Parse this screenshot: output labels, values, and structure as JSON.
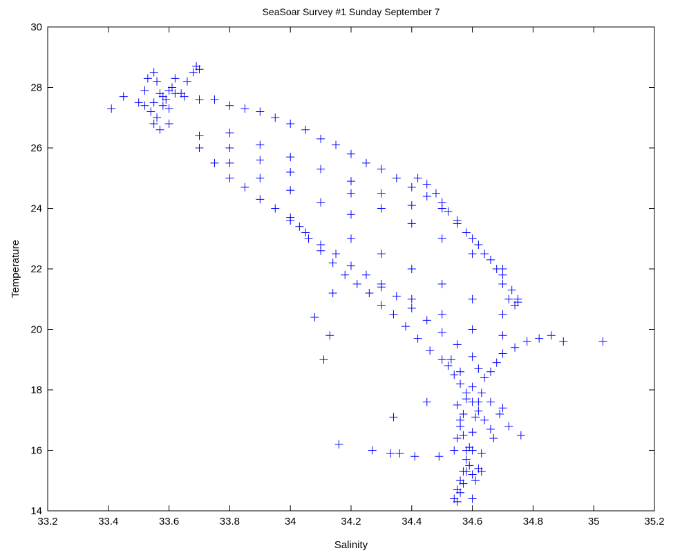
{
  "chart_data": {
    "type": "scatter",
    "title": "SeaSoar Survey #1 Sunday September 7",
    "xlabel": "Salinity",
    "ylabel": "Temperature",
    "xlim": [
      33.2,
      35.2
    ],
    "ylim": [
      14,
      30
    ],
    "xticks": [
      "33.2",
      "33.4",
      "33.6",
      "33.8",
      "34",
      "34.2",
      "34.4",
      "34.6",
      "34.8",
      "35",
      "35.2"
    ],
    "yticks": [
      "14",
      "16",
      "18",
      "20",
      "22",
      "24",
      "26",
      "28",
      "30"
    ],
    "grid": false,
    "marker": "+",
    "color": "#0000ff",
    "series": [
      {
        "x": [
          33.41,
          33.45,
          33.5,
          33.52,
          33.53,
          33.55,
          33.56,
          33.57,
          33.58,
          33.6,
          33.62,
          33.54,
          33.56,
          33.59,
          33.61,
          33.55,
          33.57,
          33.6,
          33.64,
          33.66,
          33.68,
          33.69,
          33.7,
          33.52,
          33.55,
          33.58,
          33.62,
          33.65,
          33.7,
          33.75,
          33.8,
          33.85,
          33.9,
          33.95,
          34.0,
          34.05,
          34.1,
          34.15,
          34.2,
          34.25,
          34.3,
          34.35,
          34.4,
          34.45,
          34.5,
          34.55,
          34.6,
          34.64,
          34.68,
          34.7,
          34.72,
          34.74,
          34.75,
          34.73,
          34.7,
          34.66,
          34.62,
          34.58,
          34.55,
          34.52,
          34.5,
          34.48,
          34.45,
          34.42,
          33.7,
          33.75,
          33.8,
          33.85,
          33.9,
          33.95,
          34.0,
          34.05,
          34.1,
          34.15,
          34.2,
          34.25,
          34.3,
          34.35,
          34.4,
          34.45,
          34.5,
          34.55,
          34.6,
          34.62,
          34.64,
          34.66,
          34.68,
          34.7,
          34.74,
          34.78,
          34.82,
          34.86,
          34.9,
          35.03,
          34.0,
          34.03,
          34.06,
          34.1,
          34.14,
          34.18,
          34.22,
          34.26,
          34.3,
          34.34,
          34.38,
          34.42,
          34.46,
          34.5,
          34.52,
          34.54,
          34.56,
          34.58,
          34.6,
          34.62,
          34.64,
          34.66,
          34.55,
          34.56,
          34.57,
          34.58,
          34.59,
          34.6,
          34.61,
          34.62,
          34.63,
          34.54,
          34.55,
          34.56,
          34.57,
          34.58,
          34.59,
          34.6,
          34.61,
          34.62,
          34.55,
          34.56,
          34.57,
          34.58,
          34.54,
          34.55,
          34.56,
          34.57,
          34.58,
          34.6,
          34.63,
          34.66,
          34.69,
          34.72,
          34.76,
          34.2,
          34.3,
          34.4,
          34.5,
          34.6,
          34.7,
          34.2,
          34.3,
          34.4,
          34.5,
          34.6,
          34.7,
          34.3,
          34.4,
          34.5,
          34.6,
          34.7,
          33.7,
          33.8,
          33.9,
          34.0,
          34.1,
          34.2,
          33.8,
          33.9,
          34.0,
          34.1,
          34.2,
          34.3,
          34.4,
          33.6,
          33.7,
          33.8,
          33.9,
          34.0,
          34.08,
          34.13,
          34.11,
          34.14,
          34.16,
          34.27,
          34.33,
          34.34,
          34.36,
          34.41,
          34.49,
          34.53,
          34.45,
          34.56,
          34.6,
          34.63,
          34.67,
          34.7,
          34.75,
          34.6
        ],
        "y": [
          27.3,
          27.7,
          27.5,
          27.9,
          28.3,
          28.5,
          28.2,
          27.8,
          27.4,
          27.9,
          28.3,
          27.2,
          27.0,
          27.6,
          28.0,
          26.8,
          26.6,
          27.3,
          27.8,
          28.2,
          28.5,
          28.7,
          28.6,
          27.4,
          27.5,
          27.7,
          27.8,
          27.7,
          27.6,
          27.6,
          27.4,
          27.3,
          27.2,
          27.0,
          26.8,
          26.6,
          26.3,
          26.1,
          25.8,
          25.5,
          25.3,
          25.0,
          24.7,
          24.4,
          24.0,
          23.5,
          23.0,
          22.5,
          22.0,
          21.5,
          21.0,
          20.8,
          20.9,
          21.3,
          21.8,
          22.3,
          22.8,
          23.2,
          23.6,
          23.9,
          24.2,
          24.5,
          24.8,
          25.0,
          26.0,
          25.5,
          25.0,
          24.7,
          24.3,
          24.0,
          23.6,
          23.2,
          22.8,
          22.5,
          22.1,
          21.8,
          21.4,
          21.1,
          20.7,
          20.3,
          19.9,
          19.5,
          19.1,
          18.7,
          18.4,
          18.6,
          18.9,
          19.2,
          19.4,
          19.6,
          19.7,
          19.8,
          19.6,
          19.6,
          23.7,
          23.4,
          23.0,
          22.6,
          22.2,
          21.8,
          21.5,
          21.2,
          20.8,
          20.5,
          20.1,
          19.7,
          19.3,
          19.0,
          18.8,
          18.5,
          18.2,
          17.9,
          17.6,
          17.3,
          17.0,
          16.7,
          17.5,
          17.0,
          16.5,
          16.0,
          15.5,
          15.2,
          15.0,
          15.4,
          15.9,
          14.4,
          14.7,
          15.0,
          15.3,
          15.7,
          16.1,
          16.6,
          17.1,
          17.6,
          14.3,
          14.6,
          14.9,
          15.3,
          16.0,
          16.4,
          16.8,
          17.2,
          17.7,
          18.1,
          17.9,
          17.6,
          17.2,
          16.8,
          16.5,
          24.5,
          24.0,
          23.5,
          23.0,
          22.5,
          22.0,
          23.0,
          22.5,
          22.0,
          21.5,
          21.0,
          20.5,
          21.5,
          21.0,
          20.5,
          20.0,
          19.8,
          26.0,
          25.5,
          25.0,
          24.6,
          24.2,
          23.8,
          26.5,
          26.1,
          25.7,
          25.3,
          24.9,
          24.5,
          24.1,
          26.8,
          26.4,
          26.0,
          25.6,
          25.2,
          20.4,
          19.8,
          19.0,
          21.2,
          16.2,
          16.0,
          15.9,
          17.1,
          15.9,
          15.8,
          15.8,
          19.0,
          17.6,
          18.6,
          14.4,
          15.3,
          16.4,
          17.4,
          21.0,
          16.0
        ]
      }
    ]
  }
}
